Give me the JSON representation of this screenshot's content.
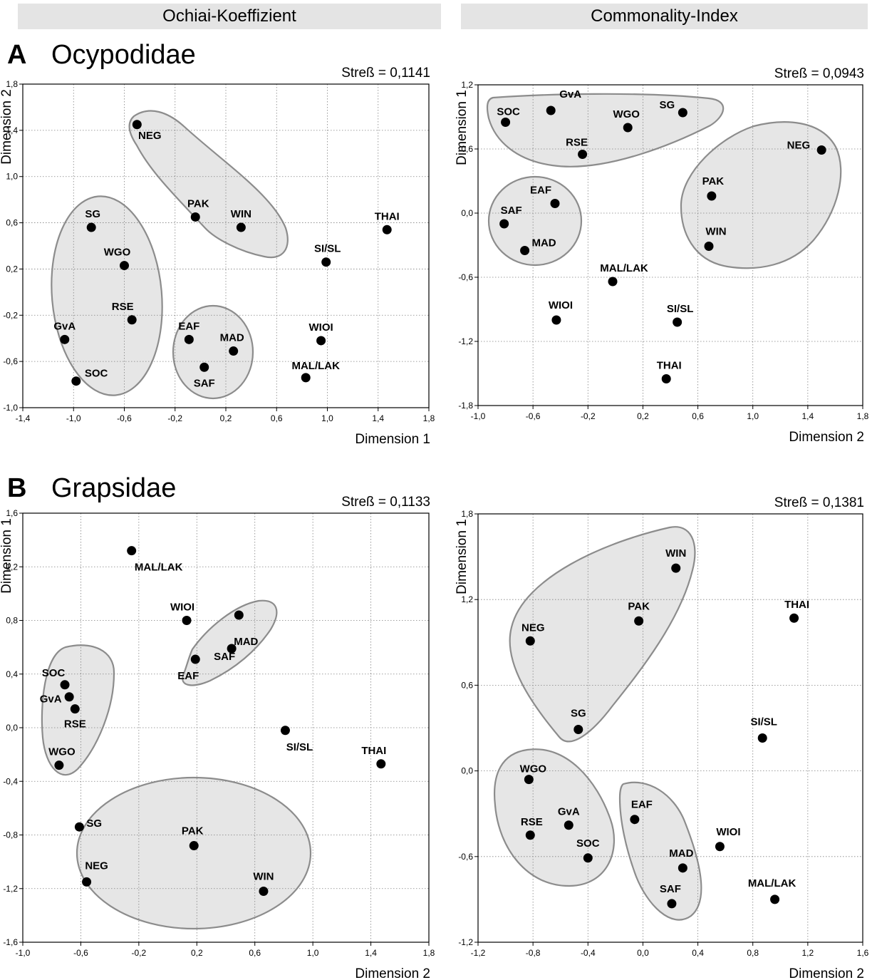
{
  "headers": {
    "left": "Ochiai-Koeffizient",
    "right": "Commonality-Index"
  },
  "sections": [
    {
      "letter": "A",
      "family": "Ocypodidae"
    },
    {
      "letter": "B",
      "family": "Grapsidae"
    }
  ],
  "colors": {
    "point": "#000000",
    "cluster_fill": "#e6e6e6",
    "cluster_stroke": "#8c8c8c",
    "grid": "#808080"
  },
  "chart_data": [
    {
      "type": "scatter",
      "panel": "A-left",
      "stress": "Streß = 0,1141",
      "xlabel": "Dimension 1",
      "ylabel": "Dimension 2",
      "xlim": [
        -1.4,
        1.8
      ],
      "ylim": [
        -1.0,
        1.8
      ],
      "xticks": [
        "-1,4",
        "-1,0",
        "-0,6",
        "-0,2",
        "0,2",
        "0,6",
        "1,0",
        "1,4",
        "1,8"
      ],
      "yticks": [
        "-1,0",
        "-0,6",
        "-0,2",
        "0,2",
        "0,6",
        "1,0",
        "1,4",
        "1,8"
      ],
      "grid": true,
      "points": [
        {
          "label": "NEG",
          "x": -0.5,
          "y": 1.45
        },
        {
          "label": "PAK",
          "x": -0.04,
          "y": 0.65
        },
        {
          "label": "WIN",
          "x": 0.32,
          "y": 0.56
        },
        {
          "label": "SG",
          "x": -0.86,
          "y": 0.56
        },
        {
          "label": "WGO",
          "x": -0.6,
          "y": 0.23
        },
        {
          "label": "RSE",
          "x": -0.54,
          "y": -0.24
        },
        {
          "label": "GvA",
          "x": -1.07,
          "y": -0.41
        },
        {
          "label": "SOC",
          "x": -0.98,
          "y": -0.77
        },
        {
          "label": "EAF",
          "x": -0.09,
          "y": -0.41
        },
        {
          "label": "MAD",
          "x": 0.26,
          "y": -0.51
        },
        {
          "label": "SAF",
          "x": 0.03,
          "y": -0.65
        },
        {
          "label": "THAI",
          "x": 1.47,
          "y": 0.54
        },
        {
          "label": "SI/SL",
          "x": 0.99,
          "y": 0.26
        },
        {
          "label": "WIOI",
          "x": 0.95,
          "y": -0.42
        },
        {
          "label": "MAL/LAK",
          "x": 0.83,
          "y": -0.74
        }
      ]
    },
    {
      "type": "scatter",
      "panel": "A-right",
      "stress": "Streß = 0,0943",
      "xlabel": "Dimension 2",
      "ylabel": "Dimension 1",
      "xlim": [
        -1.0,
        1.8
      ],
      "ylim": [
        -1.8,
        1.2
      ],
      "xticks": [
        "-1,0",
        "-0,6",
        "-0,2",
        "0,2",
        "0,6",
        "1,0",
        "1,4",
        "1,8"
      ],
      "yticks": [
        "-1,8",
        "-1,2",
        "-0,6",
        "0,0",
        "0,6",
        "1,2"
      ],
      "grid": true,
      "points": [
        {
          "label": "SOC",
          "x": -0.8,
          "y": 0.85
        },
        {
          "label": "GvA",
          "x": -0.47,
          "y": 0.96
        },
        {
          "label": "WGO",
          "x": 0.09,
          "y": 0.8
        },
        {
          "label": "SG",
          "x": 0.49,
          "y": 0.94
        },
        {
          "label": "RSE",
          "x": -0.24,
          "y": 0.55
        },
        {
          "label": "NEG",
          "x": 1.5,
          "y": 0.59
        },
        {
          "label": "PAK",
          "x": 0.7,
          "y": 0.16
        },
        {
          "label": "WIN",
          "x": 0.68,
          "y": -0.31
        },
        {
          "label": "EAF",
          "x": -0.44,
          "y": 0.09
        },
        {
          "label": "SAF",
          "x": -0.81,
          "y": -0.1
        },
        {
          "label": "MAD",
          "x": -0.66,
          "y": -0.35
        },
        {
          "label": "MAL/LAK",
          "x": -0.02,
          "y": -0.64
        },
        {
          "label": "WIOI",
          "x": -0.43,
          "y": -1.0
        },
        {
          "label": "SI/SL",
          "x": 0.45,
          "y": -1.02
        },
        {
          "label": "THAI",
          "x": 0.37,
          "y": -1.55
        }
      ]
    },
    {
      "type": "scatter",
      "panel": "B-left",
      "stress": "Streß = 0,1133",
      "xlabel": "Dimension 2",
      "ylabel": "Dimension 1",
      "xlim": [
        -1.0,
        1.8
      ],
      "ylim": [
        -1.6,
        1.6
      ],
      "xticks": [
        "-1,0",
        "-0,6",
        "-0,2",
        "0,2",
        "0,6",
        "1,0",
        "1,4",
        "1,8"
      ],
      "yticks": [
        "-1,6",
        "-1,2",
        "-0,8",
        "-0,4",
        "0,0",
        "0,4",
        "0,8",
        "1,2",
        "1,6"
      ],
      "grid": true,
      "points": [
        {
          "label": "MAL/LAK",
          "x": -0.25,
          "y": 1.32
        },
        {
          "label": "WIOI",
          "x": 0.13,
          "y": 0.8
        },
        {
          "label": "MAD",
          "x": 0.49,
          "y": 0.84
        },
        {
          "label": "SAF",
          "x": 0.44,
          "y": 0.59
        },
        {
          "label": "EAF",
          "x": 0.19,
          "y": 0.51
        },
        {
          "label": "SOC",
          "x": -0.71,
          "y": 0.32
        },
        {
          "label": "GvA",
          "x": -0.68,
          "y": 0.23
        },
        {
          "label": "RSE",
          "x": -0.64,
          "y": 0.14
        },
        {
          "label": "WGO",
          "x": -0.75,
          "y": -0.28
        },
        {
          "label": "SI/SL",
          "x": 0.81,
          "y": -0.02
        },
        {
          "label": "THAI",
          "x": 1.47,
          "y": -0.27
        },
        {
          "label": "SG",
          "x": -0.61,
          "y": -0.74
        },
        {
          "label": "PAK",
          "x": 0.18,
          "y": -0.88
        },
        {
          "label": "NEG",
          "x": -0.56,
          "y": -1.15
        },
        {
          "label": "WIN",
          "x": 0.66,
          "y": -1.22
        }
      ]
    },
    {
      "type": "scatter",
      "panel": "B-right",
      "stress": "Streß = 0,1381",
      "xlabel": "Dimension 2",
      "ylabel": "Dimension 1",
      "xlim": [
        -1.2,
        1.6
      ],
      "ylim": [
        -1.2,
        1.8
      ],
      "xticks": [
        "-1,2",
        "-0,8",
        "-0,4",
        "0,0",
        "0,4",
        "0,8",
        "1,2",
        "1,6"
      ],
      "yticks": [
        "-1,2",
        "-0,6",
        "0,0",
        "0,6",
        "1,2",
        "1,8"
      ],
      "grid": true,
      "points": [
        {
          "label": "WIN",
          "x": 0.24,
          "y": 1.42
        },
        {
          "label": "PAK",
          "x": -0.03,
          "y": 1.05
        },
        {
          "label": "NEG",
          "x": -0.82,
          "y": 0.91
        },
        {
          "label": "THAI",
          "x": 1.1,
          "y": 1.07
        },
        {
          "label": "SG",
          "x": -0.47,
          "y": 0.29
        },
        {
          "label": "SI/SL",
          "x": 0.87,
          "y": 0.23
        },
        {
          "label": "WGO",
          "x": -0.83,
          "y": -0.06
        },
        {
          "label": "RSE",
          "x": -0.82,
          "y": -0.45
        },
        {
          "label": "GvA",
          "x": -0.54,
          "y": -0.38
        },
        {
          "label": "SOC",
          "x": -0.4,
          "y": -0.61
        },
        {
          "label": "EAF",
          "x": -0.06,
          "y": -0.34
        },
        {
          "label": "WIOI",
          "x": 0.56,
          "y": -0.53
        },
        {
          "label": "MAD",
          "x": 0.29,
          "y": -0.68
        },
        {
          "label": "SAF",
          "x": 0.21,
          "y": -0.93
        },
        {
          "label": "MAL/LAK",
          "x": 0.96,
          "y": -0.9
        }
      ]
    }
  ]
}
